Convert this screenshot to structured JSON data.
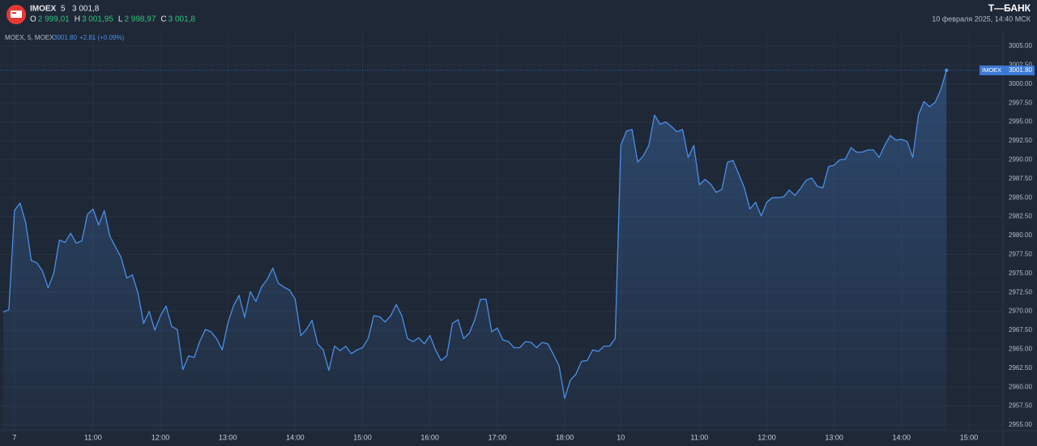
{
  "header": {
    "symbol": "IMOEX",
    "interval": "5",
    "price": "3 001,8",
    "ohlc": [
      {
        "key": "O",
        "value": "2 999,01"
      },
      {
        "key": "H",
        "value": "3 001,95"
      },
      {
        "key": "L",
        "value": "2 998,97"
      },
      {
        "key": "C",
        "value": "3 001,8"
      }
    ],
    "brand": "Т—БАНК",
    "datetime": "10 февраля 2025, 14:40 МСК"
  },
  "chart_data": {
    "type": "area",
    "legend": {
      "name": "MOEX, 5, MOEX",
      "last": "3001.80",
      "change": "+2.81 (+0.09%)"
    },
    "series_name": "IMOEX",
    "color": "#4a8fe7",
    "categories": [
      null,
      null,
      "7",
      null,
      null,
      null,
      null,
      null,
      null,
      null,
      null,
      null,
      null,
      null,
      null,
      null,
      "11:00",
      null,
      null,
      null,
      null,
      null,
      null,
      null,
      null,
      null,
      null,
      null,
      "12:00",
      null,
      null,
      null,
      null,
      null,
      null,
      null,
      null,
      null,
      null,
      null,
      "13:00",
      null,
      null,
      null,
      null,
      null,
      null,
      null,
      null,
      null,
      null,
      null,
      "14:00",
      null,
      null,
      null,
      null,
      null,
      null,
      null,
      null,
      null,
      null,
      null,
      "15:00",
      null,
      null,
      null,
      null,
      null,
      null,
      null,
      null,
      null,
      null,
      null,
      "16:00",
      null,
      null,
      null,
      null,
      null,
      null,
      null,
      null,
      null,
      null,
      null,
      "17:00",
      null,
      null,
      null,
      null,
      null,
      null,
      null,
      null,
      null,
      null,
      null,
      "18:00",
      null,
      null,
      null,
      null,
      null,
      null,
      null,
      null,
      null,
      "10",
      null,
      null,
      null,
      null,
      null,
      null,
      null,
      null,
      null,
      null,
      null,
      null,
      null,
      "11:00",
      null,
      null,
      null,
      null,
      null,
      null,
      null,
      null,
      null,
      null,
      null,
      "12:00",
      null,
      null,
      null,
      null,
      null,
      null,
      null,
      null,
      null,
      null,
      null,
      "13:00",
      null,
      null,
      null,
      null,
      null,
      null,
      null,
      null,
      null,
      null,
      null,
      "14:00",
      null,
      null,
      null,
      null,
      null,
      null,
      null,
      null,
      null,
      null,
      null,
      "15:00"
    ],
    "values": [
      2969.9,
      2970.2,
      2983.3,
      2984.3,
      2981.7,
      2976.7,
      2976.4,
      2975.3,
      2973.1,
      2975.0,
      2979.4,
      2979.1,
      2980.3,
      2979.0,
      2979.3,
      2982.8,
      2983.5,
      2981.4,
      2983.3,
      2979.9,
      2978.5,
      2977.1,
      2974.4,
      2974.8,
      2972.4,
      2968.4,
      2970.0,
      2967.5,
      2969.4,
      2970.7,
      2968.0,
      2967.6,
      2962.3,
      2964.1,
      2963.9,
      2966.0,
      2967.6,
      2967.3,
      2966.4,
      2964.9,
      2968.4,
      2970.7,
      2972.1,
      2969.2,
      2972.6,
      2971.3,
      2973.2,
      2974.2,
      2975.7,
      2973.7,
      2973.2,
      2972.8,
      2971.6,
      2966.8,
      2967.6,
      2968.8,
      2965.7,
      2964.9,
      2962.2,
      2965.4,
      2964.8,
      2965.4,
      2964.4,
      2964.9,
      2965.2,
      2966.4,
      2969.4,
      2969.3,
      2968.6,
      2969.4,
      2970.9,
      2969.4,
      2966.4,
      2966.0,
      2966.5,
      2965.7,
      2966.8,
      2964.9,
      2963.5,
      2964.1,
      2968.4,
      2968.9,
      2966.4,
      2967.1,
      2968.9,
      2971.6,
      2971.6,
      2967.3,
      2967.8,
      2966.2,
      2966.0,
      2965.2,
      2965.2,
      2966.0,
      2965.9,
      2965.2,
      2965.9,
      2965.7,
      2964.3,
      2962.8,
      2958.5,
      2960.9,
      2961.7,
      2963.4,
      2963.5,
      2964.9,
      2964.7,
      2965.4,
      2965.4,
      2966.4,
      2991.9,
      2993.8,
      2994.0,
      2989.7,
      2990.5,
      2991.9,
      2995.9,
      2994.7,
      2995.0,
      2994.4,
      2993.7,
      2994.0,
      2990.3,
      2991.9,
      2986.7,
      2987.4,
      2986.8,
      2985.7,
      2986.1,
      2989.7,
      2989.9,
      2988.1,
      2986.3,
      2983.5,
      2984.4,
      2982.6,
      2984.4,
      2985.0,
      2985.0,
      2985.1,
      2986.0,
      2985.3,
      2986.2,
      2987.3,
      2987.6,
      2986.5,
      2986.3,
      2989.1,
      2989.3,
      2990.0,
      2990.1,
      2991.6,
      2991.0,
      2991.0,
      2991.3,
      2991.3,
      2990.3,
      2991.9,
      2993.2,
      2992.6,
      2992.7,
      2992.4,
      2990.3,
      2995.9,
      2997.7,
      2997.0,
      2997.6,
      2999.3,
      3001.8,
      null,
      null,
      null,
      null
    ],
    "last_price": {
      "value": 3001.8,
      "label": "3001.80"
    },
    "ylim": [
      2954.25,
      3007.03
    ],
    "yticks": [
      {
        "value": 2955,
        "label": "2955.00"
      },
      {
        "value": 2957.5,
        "label": "2957.50"
      },
      {
        "value": 2960,
        "label": "2960.00"
      },
      {
        "value": 2962.5,
        "label": "2962.50"
      },
      {
        "value": 2965,
        "label": "2965.00"
      },
      {
        "value": 2967.5,
        "label": "2967.50"
      },
      {
        "value": 2970,
        "label": "2970.00"
      },
      {
        "value": 2972.5,
        "label": "2972.50"
      },
      {
        "value": 2975,
        "label": "2975.00"
      },
      {
        "value": 2977.5,
        "label": "2977.50"
      },
      {
        "value": 2980,
        "label": "2980.00"
      },
      {
        "value": 2982.5,
        "label": "2982.50"
      },
      {
        "value": 2985,
        "label": "2985.00"
      },
      {
        "value": 2987.5,
        "label": "2987.50"
      },
      {
        "value": 2990,
        "label": "2990.00"
      },
      {
        "value": 2992.5,
        "label": "2992.50"
      },
      {
        "value": 2995,
        "label": "2995.00"
      },
      {
        "value": 2997.5,
        "label": "2997.50"
      },
      {
        "value": 3000,
        "label": "3000.00"
      },
      {
        "value": 3002.5,
        "label": "3002.50"
      },
      {
        "value": 3005,
        "label": "3005.00"
      }
    ],
    "grid": true
  }
}
